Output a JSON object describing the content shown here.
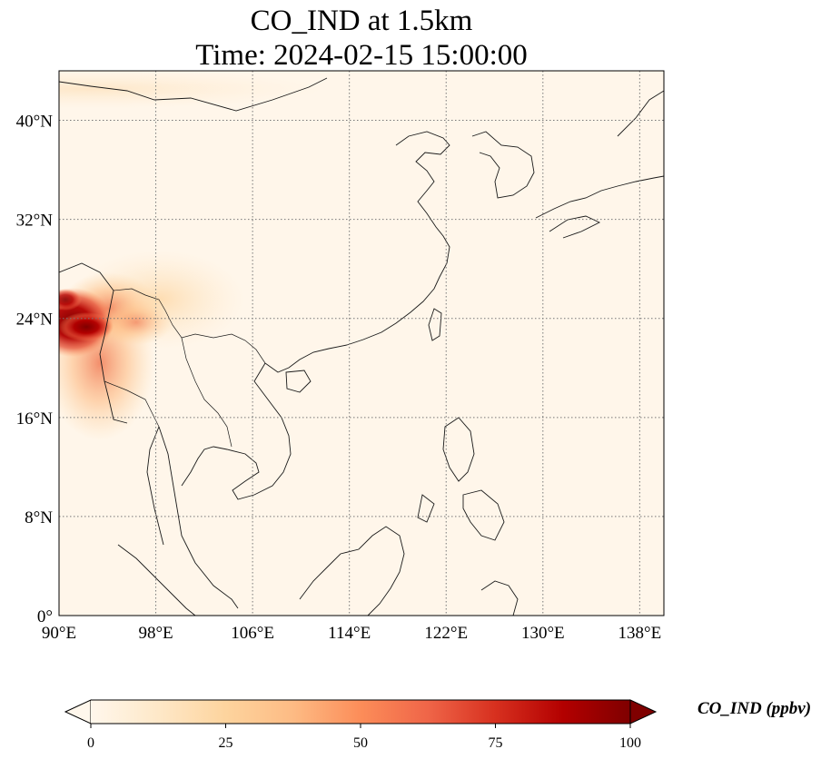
{
  "title": {
    "line1": "CO_IND at 1.5km",
    "line2": "Time: 2024-02-15 15:00:00"
  },
  "map": {
    "projection": "PlateCarree",
    "lon_range": [
      90,
      140
    ],
    "lat_range": [
      0,
      44
    ],
    "lon_ticks": [
      {
        "value": 90,
        "label": "90°E"
      },
      {
        "value": 98,
        "label": "98°E"
      },
      {
        "value": 106,
        "label": "106°E"
      },
      {
        "value": 114,
        "label": "114°E"
      },
      {
        "value": 122,
        "label": "122°E"
      },
      {
        "value": 130,
        "label": "130°E"
      },
      {
        "value": 138,
        "label": "138°E"
      }
    ],
    "lat_ticks": [
      {
        "value": 0,
        "label": "0°"
      },
      {
        "value": 8,
        "label": "8°N"
      },
      {
        "value": 16,
        "label": "16°N"
      },
      {
        "value": 24,
        "label": "24°N"
      },
      {
        "value": 32,
        "label": "32°N"
      },
      {
        "value": 40,
        "label": "40°N"
      }
    ],
    "gridlines": "dotted",
    "background_color": "#fff6ea",
    "hotspot_region": "Myanmar / NE India border, ~90-100°E, 16-28°N"
  },
  "colorbar": {
    "label": "CO_IND (ppbv)",
    "colormap": "OrRd",
    "min": 0,
    "max": 100,
    "extend": "both",
    "ticks": [
      {
        "value": 0,
        "label": "0"
      },
      {
        "value": 25,
        "label": "25"
      },
      {
        "value": 50,
        "label": "50"
      },
      {
        "value": 75,
        "label": "75"
      },
      {
        "value": 100,
        "label": "100"
      }
    ]
  }
}
